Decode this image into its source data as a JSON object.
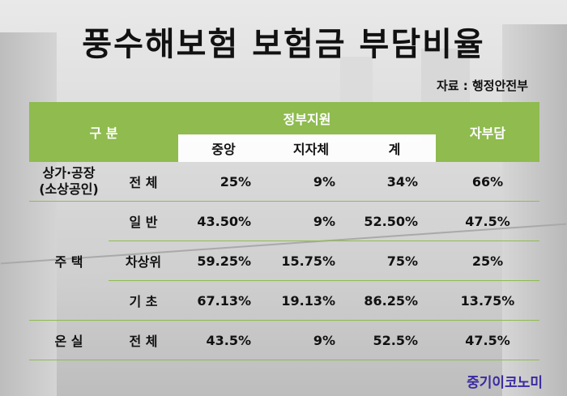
{
  "title": "풍수해보험 보험금 부담비율",
  "source": "자료 : 행정안전부",
  "header": {
    "category": "구 분",
    "government_support": "정부지원",
    "central": "중앙",
    "local": "지자체",
    "total": "계",
    "self_pay": "자부담"
  },
  "rows": [
    {
      "group_line1": "상가·공장",
      "group_line2": "(소상공인)",
      "sub": "전 체",
      "central": "25%",
      "local": "9%",
      "total": "34%",
      "self": "66%"
    },
    {
      "group": "주 택",
      "sub": "일 반",
      "central": "43.50%",
      "local": "9%",
      "total": "52.50%",
      "self": "47.5%"
    },
    {
      "sub": "차상위",
      "central": "59.25%",
      "local": "15.75%",
      "total": "75%",
      "self": "25%"
    },
    {
      "sub": "기 초",
      "central": "67.13%",
      "local": "19.13%",
      "total": "86.25%",
      "self": "13.75%"
    },
    {
      "group": "온 실",
      "sub": "전 체",
      "central": "43.5%",
      "local": "9%",
      "total": "52.5%",
      "self": "47.5%"
    }
  ],
  "logo": "중기이코노미"
}
